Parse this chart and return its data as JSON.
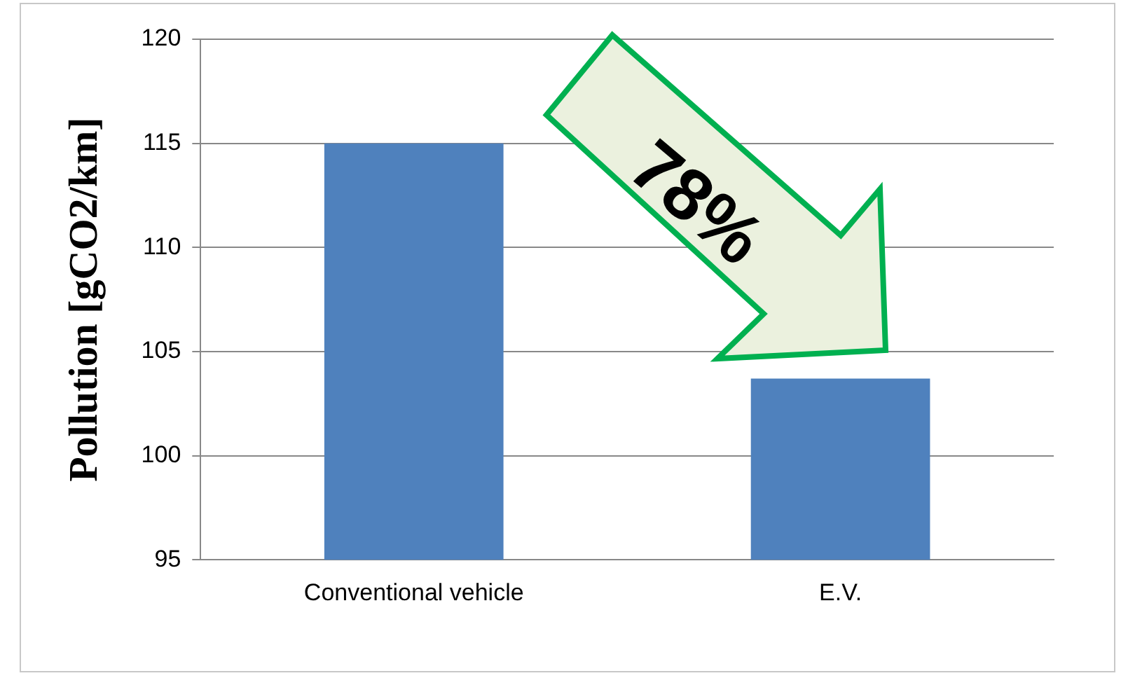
{
  "chart_data": {
    "type": "bar",
    "ylabel": "Pollution [gCO2/km]",
    "categories": [
      "Conventional vehicle",
      "E.V."
    ],
    "values": [
      115,
      103.7
    ],
    "color": "#4f81bd",
    "ylim": [
      95,
      120
    ],
    "yticks": [
      95,
      100,
      105,
      110,
      115,
      120
    ],
    "grid": "y",
    "legend": false,
    "annotations": [
      "78%"
    ]
  }
}
